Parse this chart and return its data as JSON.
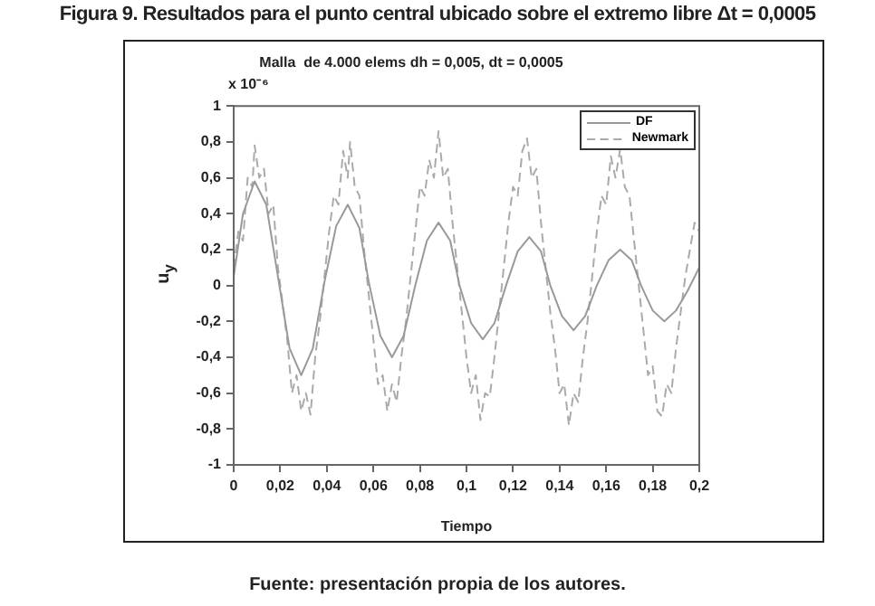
{
  "chart_data": {
    "type": "line",
    "title": "Figura 9. Resultados para el punto central ubicado sobre el extremo libre Δt = 0,0005",
    "subtitle": "Malla  de 4.000 elems dh = 0,005, dt = 0,0005",
    "xlabel": "Tiempo",
    "ylabel": "u$_{y}$",
    "annotations": [
      "x 10⁻⁶",
      "Fuente: presentación propia de los autores."
    ],
    "xlim": [
      0,
      0.2
    ],
    "xticks": [
      0,
      {
        "value": 0.02,
        "label": "0,02"
      },
      {
        "value": 0.04,
        "label": "0,04"
      },
      {
        "value": 0.06,
        "label": "0,06"
      },
      {
        "value": 0.08,
        "label": "0,08"
      },
      {
        "value": 0.1,
        "label": "0,1"
      },
      {
        "value": 0.12,
        "label": "0,12"
      },
      {
        "value": 0.14,
        "label": "0,14"
      },
      {
        "value": 0.16,
        "label": "0,16"
      },
      {
        "value": 0.18,
        "label": "0,18"
      },
      {
        "value": 0.2,
        "label": "0,2"
      }
    ],
    "ylim": [
      -1,
      1
    ],
    "yticks": [
      -1,
      {
        "value": -0.8,
        "label": "-0,8"
      },
      {
        "value": -0.6,
        "label": "-0,6"
      },
      {
        "value": -0.4,
        "label": "-0,4"
      },
      {
        "value": -0.2,
        "label": "-0,2"
      },
      0,
      {
        "value": 0.2,
        "label": "0,2"
      },
      {
        "value": 0.4,
        "label": "0,4"
      },
      {
        "value": 0.6,
        "label": "0,6"
      },
      {
        "value": 0.8,
        "label": "0,8"
      },
      1
    ],
    "grid": false,
    "legend": "top right",
    "marker": "none",
    "series": [
      {
        "name": "DF",
        "color": "#999999",
        "line_style": "solid",
        "x": [
          0,
          0.004,
          0.009,
          0.014,
          0.019,
          0.024,
          0.029,
          0.034,
          0.039,
          0.044,
          0.049,
          0.054,
          0.058,
          0.063,
          0.068,
          0.073,
          0.078,
          0.083,
          0.088,
          0.093,
          0.097,
          0.102,
          0.107,
          0.112,
          0.117,
          0.122,
          0.127,
          0.132,
          0.136,
          0.141,
          0.146,
          0.151,
          0.156,
          0.161,
          0.166,
          0.171,
          0.175,
          0.18,
          0.185,
          0.19,
          0.195,
          0.2
        ],
        "values": [
          0.05,
          0.4,
          0.58,
          0.45,
          0.05,
          -0.35,
          -0.5,
          -0.35,
          0.02,
          0.33,
          0.45,
          0.32,
          0.02,
          -0.28,
          -0.4,
          -0.28,
          0,
          0.25,
          0.35,
          0.25,
          0,
          -0.21,
          -0.3,
          -0.21,
          0,
          0.19,
          0.27,
          0.19,
          0,
          -0.17,
          -0.25,
          -0.17,
          0,
          0.14,
          0.2,
          0.14,
          0,
          -0.14,
          -0.2,
          -0.14,
          -0.03,
          0.1
        ]
      },
      {
        "name": "Newmark",
        "color": "#aaaaaa",
        "line_style": "dashed",
        "x": [
          0,
          0.002,
          0.004,
          0.006,
          0.008,
          0.009,
          0.011,
          0.013,
          0.015,
          0.017,
          0.019,
          0.021,
          0.023,
          0.025,
          0.027,
          0.029,
          0.031,
          0.033,
          0.035,
          0.037,
          0.039,
          0.041,
          0.043,
          0.045,
          0.047,
          0.049,
          0.05,
          0.052,
          0.054,
          0.056,
          0.058,
          0.06,
          0.062,
          0.064,
          0.066,
          0.068,
          0.07,
          0.072,
          0.074,
          0.076,
          0.078,
          0.08,
          0.082,
          0.084,
          0.086,
          0.088,
          0.09,
          0.092,
          0.094,
          0.096,
          0.098,
          0.1,
          0.102,
          0.104,
          0.106,
          0.108,
          0.11,
          0.112,
          0.114,
          0.116,
          0.118,
          0.12,
          0.122,
          0.124,
          0.126,
          0.128,
          0.13,
          0.132,
          0.134,
          0.136,
          0.138,
          0.14,
          0.142,
          0.144,
          0.146,
          0.148,
          0.15,
          0.152,
          0.154,
          0.156,
          0.158,
          0.16,
          0.162,
          0.164,
          0.166,
          0.168,
          0.17,
          0.172,
          0.174,
          0.176,
          0.178,
          0.18,
          0.182,
          0.184,
          0.186,
          0.188,
          0.19,
          0.192,
          0.194,
          0.196,
          0.198,
          0.2
        ],
        "values": [
          0.1,
          0.3,
          0.25,
          0.6,
          0.55,
          0.78,
          0.6,
          0.65,
          0.4,
          0.45,
          0.1,
          -0.1,
          -0.3,
          -0.6,
          -0.5,
          -0.7,
          -0.6,
          -0.72,
          -0.4,
          -0.2,
          0.05,
          0.3,
          0.5,
          0.45,
          0.75,
          0.6,
          0.8,
          0.55,
          0.5,
          0.2,
          -0.05,
          -0.3,
          -0.55,
          -0.5,
          -0.7,
          -0.55,
          -0.65,
          -0.4,
          -0.2,
          0.05,
          0.3,
          0.55,
          0.5,
          0.7,
          0.6,
          0.86,
          0.6,
          0.65,
          0.35,
          0.1,
          -0.15,
          -0.4,
          -0.6,
          -0.5,
          -0.75,
          -0.6,
          -0.62,
          -0.4,
          -0.15,
          0.1,
          0.35,
          0.55,
          0.5,
          0.75,
          0.82,
          0.6,
          0.65,
          0.35,
          0.1,
          -0.15,
          -0.35,
          -0.6,
          -0.55,
          -0.78,
          -0.6,
          -0.65,
          -0.4,
          -0.2,
          0.05,
          0.3,
          0.5,
          0.45,
          0.72,
          0.6,
          0.76,
          0.55,
          0.5,
          0.25,
          0,
          -0.25,
          -0.5,
          -0.45,
          -0.7,
          -0.73,
          -0.55,
          -0.6,
          -0.35,
          -0.15,
          0.05,
          0.2,
          0.35,
          0.3
        ]
      }
    ]
  }
}
